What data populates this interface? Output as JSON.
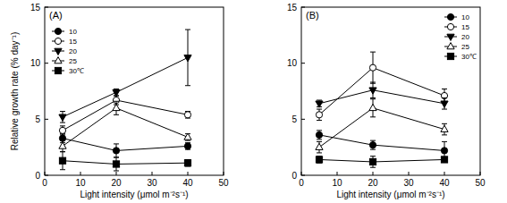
{
  "chart_data": [
    {
      "type": "line",
      "title": "(A)",
      "x_label": "Light intensity (μmol m⁻²s⁻¹)",
      "y_label": "Relative growth rate (% day⁻¹)",
      "x": [
        5,
        20,
        40
      ],
      "xlim": [
        0,
        50
      ],
      "xticks": [
        0,
        10,
        20,
        30,
        40,
        50
      ],
      "ylim": [
        0,
        15
      ],
      "yticks": [
        0,
        5,
        10,
        15
      ],
      "legend": "upper left",
      "series": [
        {
          "name": "10",
          "color": "#000000",
          "marker": "circle",
          "values": [
            3.3,
            2.2,
            2.6
          ],
          "errors": [
            0.4,
            0.6,
            0.3
          ]
        },
        {
          "name": "15",
          "color": "#000000",
          "marker": "circle-open",
          "values": [
            4.0,
            6.7,
            5.4
          ],
          "errors": [
            0.4,
            0.4,
            0.3
          ]
        },
        {
          "name": "20",
          "color": "#000000",
          "marker": "triangle-down",
          "values": [
            5.2,
            7.4,
            10.5
          ],
          "errors": [
            0.5,
            0.3,
            2.5
          ]
        },
        {
          "name": "25",
          "color": "#000000",
          "marker": "triangle-up-open",
          "values": [
            2.6,
            6.0,
            3.4
          ],
          "errors": [
            0.5,
            0.6,
            0.3
          ]
        },
        {
          "name": "30℃",
          "color": "#000000",
          "marker": "square",
          "values": [
            1.3,
            1.0,
            1.1
          ],
          "errors": [
            0.8,
            0.6,
            0.3
          ]
        }
      ]
    },
    {
      "type": "line",
      "title": "(B)",
      "x_label": "Light intensity (μmol m⁻²s⁻¹)",
      "x": [
        5,
        20,
        40
      ],
      "xlim": [
        0,
        50
      ],
      "xticks": [
        0,
        10,
        20,
        30,
        40,
        50
      ],
      "ylim": [
        0,
        15
      ],
      "yticks": [
        0,
        5,
        10,
        15
      ],
      "legend": "upper right",
      "series": [
        {
          "name": "10",
          "color": "#000000",
          "marker": "circle",
          "values": [
            3.6,
            2.7,
            2.2
          ],
          "errors": [
            0.4,
            0.4,
            0.8
          ]
        },
        {
          "name": "15",
          "color": "#000000",
          "marker": "circle-open",
          "values": [
            5.4,
            9.6,
            7.1
          ],
          "errors": [
            0.5,
            1.4,
            0.6
          ]
        },
        {
          "name": "20",
          "color": "#000000",
          "marker": "triangle-down",
          "values": [
            6.4,
            7.6,
            6.4
          ],
          "errors": [
            0.3,
            0.7,
            0.5
          ]
        },
        {
          "name": "25",
          "color": "#000000",
          "marker": "triangle-up-open",
          "values": [
            2.5,
            6.0,
            4.1
          ],
          "errors": [
            0.5,
            0.8,
            0.5
          ]
        },
        {
          "name": "30℃",
          "color": "#000000",
          "marker": "square",
          "values": [
            1.4,
            1.2,
            1.4
          ],
          "errors": [
            0.3,
            0.5,
            0.2
          ]
        }
      ]
    }
  ]
}
